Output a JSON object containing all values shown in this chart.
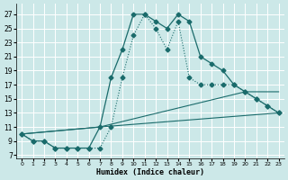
{
  "xlabel": "Humidex (Indice chaleur)",
  "bg_color": "#cce8e8",
  "grid_color": "#ffffff",
  "line_color": "#1a6b6b",
  "xlim": [
    -0.5,
    23.5
  ],
  "ylim": [
    6.5,
    28.5
  ],
  "xticks": [
    0,
    1,
    2,
    3,
    4,
    5,
    6,
    7,
    8,
    9,
    10,
    11,
    12,
    13,
    14,
    15,
    16,
    17,
    18,
    19,
    20,
    21,
    22,
    23
  ],
  "yticks": [
    7,
    9,
    11,
    13,
    15,
    17,
    19,
    21,
    23,
    25,
    27
  ],
  "curve1_x": [
    0,
    1,
    2,
    3,
    4,
    5,
    6,
    7,
    8,
    9,
    10,
    11,
    12,
    13,
    14,
    15,
    16,
    17,
    18,
    19,
    20,
    21,
    22,
    23
  ],
  "curve1_y": [
    10,
    9,
    9,
    8,
    8,
    8,
    8,
    11,
    18,
    22,
    27,
    27,
    26,
    25,
    27,
    26,
    21,
    20,
    19,
    17,
    16,
    15,
    14,
    13
  ],
  "curve2_x": [
    0,
    1,
    2,
    3,
    4,
    5,
    6,
    7,
    8,
    9,
    10,
    11,
    12,
    13,
    14,
    15,
    16,
    17,
    18,
    19,
    20,
    21,
    22,
    23
  ],
  "curve2_y": [
    10,
    9,
    9,
    8,
    8,
    8,
    8,
    8,
    11,
    18,
    24,
    27,
    25,
    22,
    26,
    18,
    17,
    17,
    17,
    17,
    16,
    15,
    14,
    13
  ],
  "line3_x": [
    0,
    7,
    20,
    23
  ],
  "line3_y": [
    10,
    11,
    16,
    16
  ],
  "line4_x": [
    0,
    7,
    23
  ],
  "line4_y": [
    10,
    11,
    13
  ],
  "marker": "D",
  "ms1": 2.5,
  "ms2": 2.5,
  "lw1": 0.9,
  "lw2": 0.8
}
